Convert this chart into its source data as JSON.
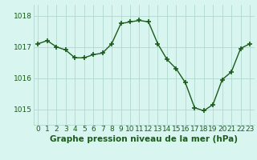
{
  "x": [
    0,
    1,
    2,
    3,
    4,
    5,
    6,
    7,
    8,
    9,
    10,
    11,
    12,
    13,
    14,
    15,
    16,
    17,
    18,
    19,
    20,
    21,
    22,
    23
  ],
  "y": [
    1017.1,
    1017.2,
    1017.0,
    1016.9,
    1016.65,
    1016.65,
    1016.75,
    1016.8,
    1017.1,
    1017.75,
    1017.8,
    1017.85,
    1017.8,
    1017.1,
    1016.6,
    1016.3,
    1015.85,
    1015.05,
    1014.95,
    1015.15,
    1015.95,
    1016.2,
    1016.95,
    1017.1
  ],
  "line_color": "#1a5c1a",
  "marker": "+",
  "markersize": 4,
  "markeredgewidth": 1.2,
  "linewidth": 1.0,
  "background_color": "#d9f5f0",
  "grid_color": "#b0d8d0",
  "xlabel": "Graphe pression niveau de la mer (hPa)",
  "xlabel_fontsize": 7.5,
  "xlabel_color": "#1a5c1a",
  "yticks": [
    1015,
    1016,
    1017,
    1018
  ],
  "ylim": [
    1014.5,
    1018.35
  ],
  "xlim": [
    -0.5,
    23.5
  ],
  "tick_fontsize": 6.5,
  "tick_color": "#1a5c1a",
  "xtick_labels": [
    "0",
    "1",
    "2",
    "3",
    "4",
    "5",
    "6",
    "7",
    "8",
    "9",
    "10",
    "11",
    "12",
    "13",
    "14",
    "15",
    "16",
    "17",
    "18",
    "19",
    "20",
    "21",
    "22",
    "23"
  ],
  "fig_width": 3.2,
  "fig_height": 2.0,
  "dpi": 100
}
